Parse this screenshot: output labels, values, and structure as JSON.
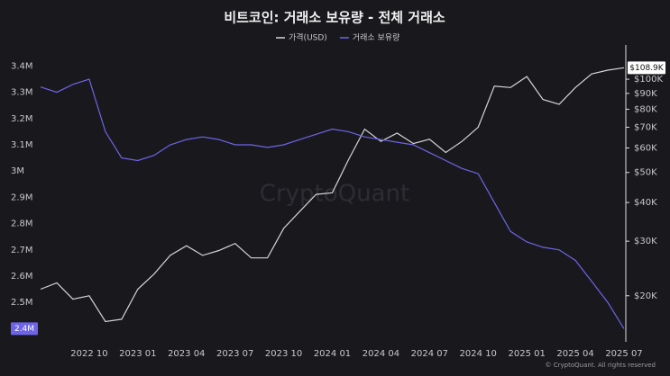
{
  "chart_data": {
    "type": "line",
    "title": "비트코인: 거래소 보유량 - 전체 거래소",
    "watermark": "CryptoQuant",
    "footer": "© CryptoQuant. All rights reserved",
    "x": [
      "2022-07",
      "2022-08",
      "2022-09",
      "2022-10",
      "2022-11",
      "2022-12",
      "2023-01",
      "2023-02",
      "2023-03",
      "2023-04",
      "2023-05",
      "2023-06",
      "2023-07",
      "2023-08",
      "2023-09",
      "2023-10",
      "2023-11",
      "2023-12",
      "2024-01",
      "2024-02",
      "2024-03",
      "2024-04",
      "2024-05",
      "2024-06",
      "2024-07",
      "2024-08",
      "2024-09",
      "2024-10",
      "2024-11",
      "2024-12",
      "2025-01",
      "2025-02",
      "2025-03",
      "2025-04",
      "2025-05",
      "2025-06",
      "2025-07"
    ],
    "xlim": [
      "2022-07",
      "2025-07"
    ],
    "xticks": [
      {
        "value": "2022-10",
        "label": "2022 10"
      },
      {
        "value": "2023-01",
        "label": "2023 01"
      },
      {
        "value": "2023-04",
        "label": "2023 04"
      },
      {
        "value": "2023-07",
        "label": "2023 07"
      },
      {
        "value": "2023-10",
        "label": "2023 10"
      },
      {
        "value": "2024-01",
        "label": "2024 01"
      },
      {
        "value": "2024-04",
        "label": "2024 04"
      },
      {
        "value": "2024-07",
        "label": "2024 07"
      },
      {
        "value": "2024-10",
        "label": "2024 10"
      },
      {
        "value": "2025-01",
        "label": "2025 01"
      },
      {
        "value": "2025-04",
        "label": "2025 04"
      },
      {
        "value": "2025-07",
        "label": "2025 07"
      }
    ],
    "ylim": [
      2350000,
      3480000
    ],
    "yticks": [
      {
        "value": 2400000,
        "label": "2.4M"
      },
      {
        "value": 2500000,
        "label": "2.5M"
      },
      {
        "value": 2600000,
        "label": "2.6M"
      },
      {
        "value": 2700000,
        "label": "2.7M"
      },
      {
        "value": 2800000,
        "label": "2.8M"
      },
      {
        "value": 2900000,
        "label": "2.9M"
      },
      {
        "value": 3000000,
        "label": "3M"
      },
      {
        "value": 3100000,
        "label": "3.1M"
      },
      {
        "value": 3200000,
        "label": "3.2M"
      },
      {
        "value": 3300000,
        "label": "3.3M"
      },
      {
        "value": 3400000,
        "label": "3.4M"
      }
    ],
    "y2lim": [
      14200,
      129000
    ],
    "y2scale": "log",
    "y2ticks": [
      {
        "value": 20000,
        "label": "$20K"
      },
      {
        "value": 30000,
        "label": "$30K"
      },
      {
        "value": 40000,
        "label": "$40K"
      },
      {
        "value": 50000,
        "label": "$50K"
      },
      {
        "value": 60000,
        "label": "$60K"
      },
      {
        "value": 70000,
        "label": "$70K"
      },
      {
        "value": 80000,
        "label": "$80K"
      },
      {
        "value": 90000,
        "label": "$90K"
      },
      {
        "value": 100000,
        "label": "$100K"
      }
    ],
    "grid": false,
    "series": [
      {
        "name": "가격(USD)",
        "color": "#d4d4d8",
        "axis": "y2",
        "values": [
          21000,
          22000,
          19500,
          20000,
          16500,
          16800,
          21000,
          23500,
          27000,
          29000,
          27000,
          28000,
          29500,
          26500,
          26500,
          33000,
          37500,
          42500,
          43000,
          55000,
          69000,
          63000,
          67000,
          62000,
          64000,
          58000,
          63000,
          70000,
          95000,
          94000,
          102000,
          86000,
          83000,
          94000,
          104000,
          107000,
          108900
        ],
        "value_labels": [
          null,
          null,
          null,
          null,
          null,
          null,
          null,
          null,
          null,
          null,
          null,
          null,
          null,
          null,
          null,
          null,
          null,
          null,
          null,
          null,
          null,
          null,
          null,
          null,
          null,
          null,
          null,
          null,
          null,
          null,
          null,
          null,
          null,
          null,
          null,
          null,
          "$108.9K"
        ]
      },
      {
        "name": "거래소 보유량",
        "color": "#6d64e8",
        "values": [
          3320000,
          3300000,
          3330000,
          3350000,
          3150000,
          3050000,
          3040000,
          3060000,
          3100000,
          3120000,
          3130000,
          3120000,
          3100000,
          3100000,
          3090000,
          3100000,
          3120000,
          3140000,
          3160000,
          3150000,
          3130000,
          3120000,
          3110000,
          3100000,
          3070000,
          3040000,
          3010000,
          2990000,
          2880000,
          2770000,
          2730000,
          2710000,
          2700000,
          2660000,
          2580000,
          2500000,
          2400000
        ],
        "value_labels": [
          null,
          null,
          null,
          null,
          null,
          null,
          null,
          null,
          null,
          null,
          null,
          null,
          null,
          null,
          null,
          null,
          null,
          null,
          null,
          null,
          null,
          null,
          null,
          null,
          null,
          null,
          null,
          null,
          null,
          null,
          null,
          null,
          null,
          null,
          null,
          null,
          "2.4M"
        ]
      }
    ]
  }
}
